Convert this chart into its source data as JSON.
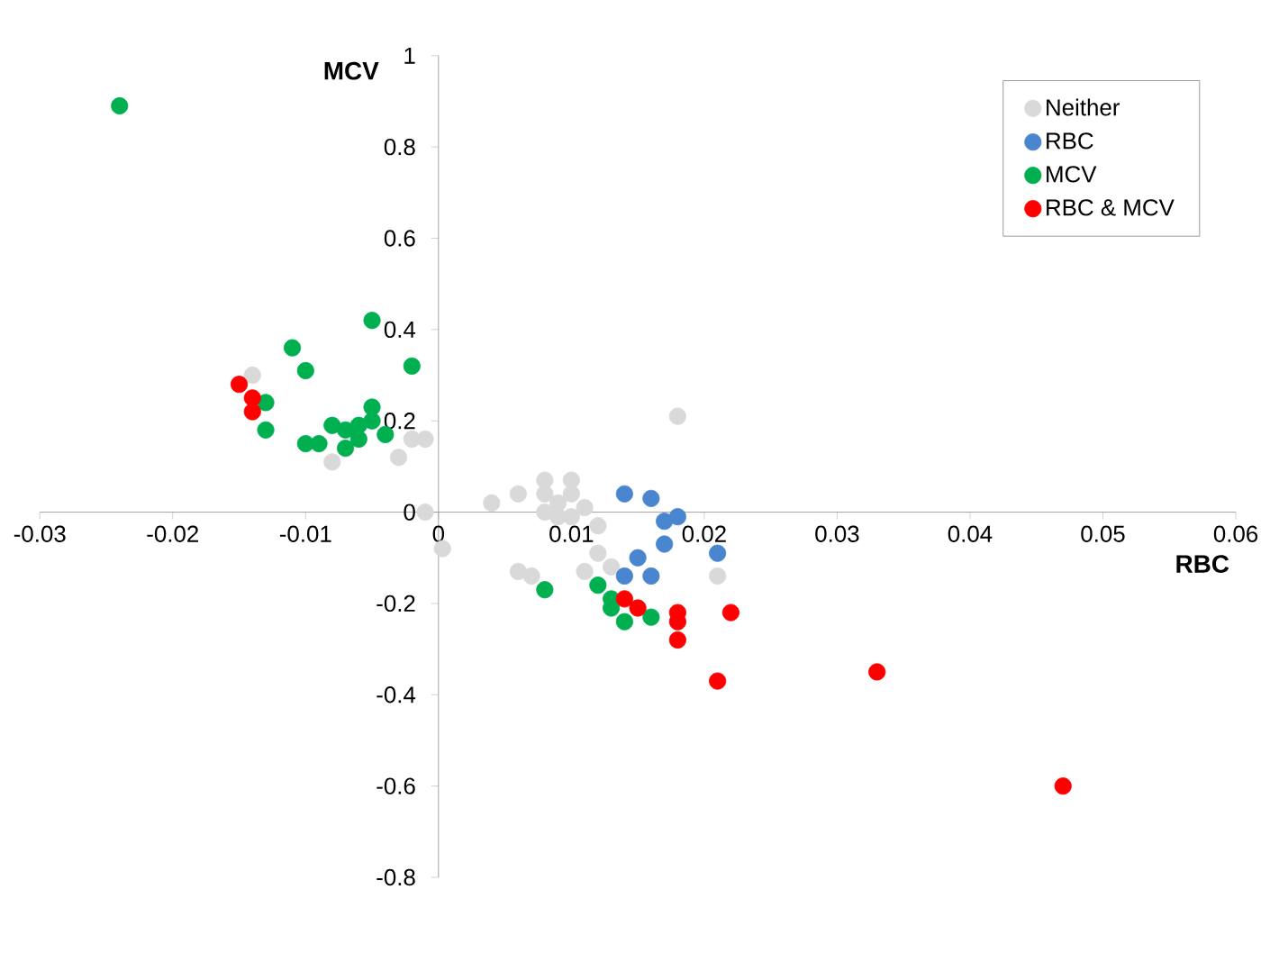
{
  "chart_data": {
    "type": "scatter",
    "xlabel": "RBC",
    "ylabel": "MCV",
    "xlim": [
      -0.03,
      0.06
    ],
    "ylim": [
      -0.8,
      1
    ],
    "xticks": [
      -0.03,
      -0.02,
      -0.01,
      0,
      0.01,
      0.02,
      0.03,
      0.04,
      0.05,
      0.06
    ],
    "yticks": [
      -0.8,
      -0.6,
      -0.4,
      -0.2,
      0,
      0.2,
      0.4,
      0.6,
      0.8,
      1
    ],
    "grid": false,
    "legend": "top right",
    "marker": "circle",
    "series": [
      {
        "name": "Neither",
        "color": "#d9d9d9",
        "x": [
          -0.014,
          -0.008,
          -0.003,
          -0.002,
          -0.001,
          -0.001,
          0.0003,
          0.004,
          0.006,
          0.008,
          0.008,
          0.009,
          0.01,
          0.01,
          0.011,
          0.008,
          0.009,
          0.012,
          0.012,
          0.006,
          0.007,
          0.011,
          0.018,
          0.021,
          0.013,
          0.01
        ],
        "values": [
          0.3,
          0.11,
          0.12,
          0.16,
          0.16,
          0.0,
          -0.08,
          0.02,
          0.04,
          0.07,
          0.04,
          0.02,
          0.07,
          0.04,
          0.01,
          0.0,
          -0.01,
          -0.03,
          -0.09,
          -0.13,
          -0.14,
          -0.13,
          0.21,
          -0.14,
          -0.12,
          -0.01
        ]
      },
      {
        "name": "RBC",
        "color": "#4a86d0",
        "x": [
          0.014,
          0.016,
          0.017,
          0.018,
          0.017,
          0.015,
          0.014,
          0.016,
          0.021
        ],
        "values": [
          0.04,
          0.03,
          -0.02,
          -0.01,
          -0.07,
          -0.1,
          -0.14,
          -0.14,
          -0.09
        ]
      },
      {
        "name": "MCV",
        "color": "#00b050",
        "x": [
          -0.024,
          -0.011,
          -0.01,
          -0.013,
          -0.013,
          -0.01,
          -0.009,
          -0.008,
          -0.007,
          -0.007,
          -0.006,
          -0.006,
          -0.005,
          -0.005,
          -0.005,
          -0.002,
          -0.004,
          0.008,
          0.012,
          0.013,
          0.013,
          0.014,
          0.016
        ],
        "values": [
          0.89,
          0.36,
          0.31,
          0.24,
          0.18,
          0.15,
          0.15,
          0.19,
          0.18,
          0.14,
          0.19,
          0.16,
          0.23,
          0.2,
          0.42,
          0.32,
          0.17,
          -0.17,
          -0.16,
          -0.19,
          -0.21,
          -0.24,
          -0.23
        ]
      },
      {
        "name": "RBC & MCV",
        "color": "#ff0000",
        "x": [
          -0.015,
          -0.014,
          -0.014,
          0.014,
          0.015,
          0.018,
          0.018,
          0.018,
          0.022,
          0.021,
          0.033,
          0.047
        ],
        "values": [
          0.28,
          0.25,
          0.22,
          -0.19,
          -0.21,
          -0.22,
          -0.24,
          -0.28,
          -0.22,
          -0.37,
          -0.35,
          -0.6
        ]
      }
    ]
  }
}
